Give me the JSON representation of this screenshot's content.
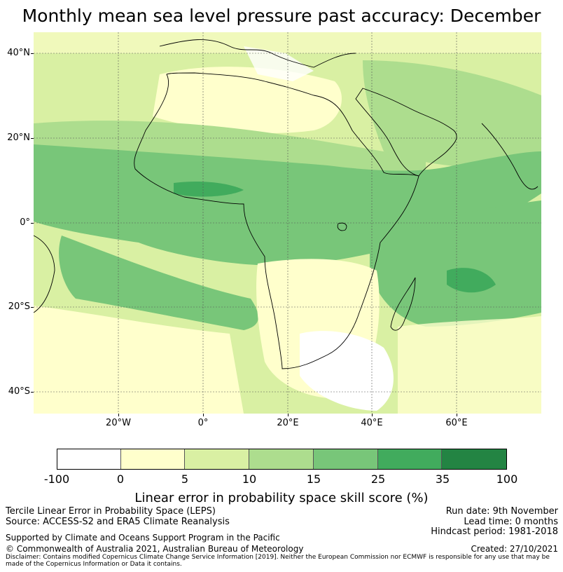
{
  "title": "Monthly mean sea level pressure past accuracy: December",
  "map": {
    "lat_labels": [
      "40°N",
      "20°N",
      "0°",
      "20°S",
      "40°S"
    ],
    "lon_labels": [
      "20°W",
      "0°",
      "20°E",
      "40°E",
      "60°E"
    ],
    "colors": {
      "ocean_light": "#ffffcc",
      "white": "#ffffff",
      "yellow_green": "#d9f0a3",
      "light_green": "#addd8e",
      "mid_green": "#78c679",
      "green": "#41ab5d",
      "dark_green": "#238443",
      "coast": "#000000"
    }
  },
  "colorbar": {
    "ticks": [
      "-100",
      "0",
      "5",
      "10",
      "15",
      "25",
      "35",
      "100"
    ],
    "colors": [
      "#ffffff",
      "#ffffcc",
      "#d9f0a3",
      "#addd8e",
      "#78c679",
      "#41ab5d",
      "#238443"
    ],
    "label": "Linear error in probability space skill score (%)"
  },
  "info": {
    "line1": "Tercile Linear Error in Probability Space (LEPS)",
    "line2": "Source: ACCESS-S2 and ERA5 Climate Reanalysis",
    "support": "Supported by Climate and Oceans Support Program in the Pacific",
    "copyright": "© Commonwealth of Australia 2021, Australian Bureau of Meteorology",
    "run_date": "Run date: 9th November",
    "lead_time": "Lead time: 0 months",
    "hindcast": "Hindcast period: 1981-2018",
    "created": "Created: 27/10/2021",
    "disclaimer": "Disclaimer: Contains modified Copernicus Climate Change Service Information [2019]. Neither the European Commission nor ECMWF is responsible for any use that may be made of the Copernicus Information or Data it contains."
  }
}
